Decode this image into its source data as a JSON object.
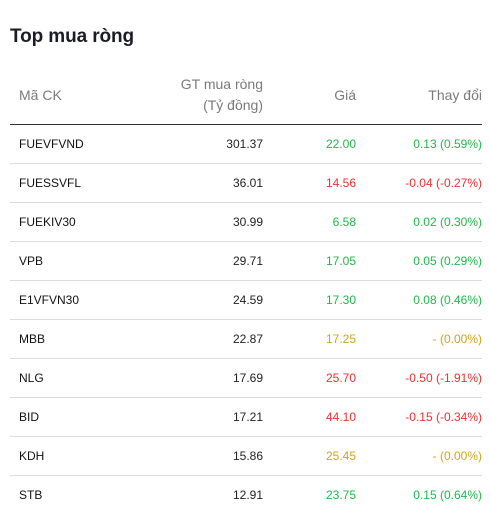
{
  "title": "Top mua ròng",
  "headers": {
    "code": "Mã CK",
    "value_line1": "GT mua ròng",
    "value_line2": "(Tỷ đồng)",
    "price": "Giá",
    "change": "Thay đổi"
  },
  "rows": [
    {
      "code": "FUEVFVND",
      "value": "301.37",
      "price": "22.00",
      "change": "0.13 (0.59%)",
      "trend": "up"
    },
    {
      "code": "FUESSVFL",
      "value": "36.01",
      "price": "14.56",
      "change": "-0.04 (-0.27%)",
      "trend": "down"
    },
    {
      "code": "FUEKIV30",
      "value": "30.99",
      "price": "6.58",
      "change": "0.02 (0.30%)",
      "trend": "up"
    },
    {
      "code": "VPB",
      "value": "29.71",
      "price": "17.05",
      "change": "0.05 (0.29%)",
      "trend": "up"
    },
    {
      "code": "E1VFVN30",
      "value": "24.59",
      "price": "17.30",
      "change": "0.08 (0.46%)",
      "trend": "up"
    },
    {
      "code": "MBB",
      "value": "22.87",
      "price": "17.25",
      "change": "- (0.00%)",
      "trend": "ref"
    },
    {
      "code": "NLG",
      "value": "17.69",
      "price": "25.70",
      "change": "-0.50 (-1.91%)",
      "trend": "down"
    },
    {
      "code": "BID",
      "value": "17.21",
      "price": "44.10",
      "change": "-0.15 (-0.34%)",
      "trend": "down"
    },
    {
      "code": "KDH",
      "value": "15.86",
      "price": "25.45",
      "change": "- (0.00%)",
      "trend": "ref"
    },
    {
      "code": "STB",
      "value": "12.91",
      "price": "23.75",
      "change": "0.15 (0.64%)",
      "trend": "up"
    }
  ],
  "colors": {
    "up": "#1fb84a",
    "down": "#ee2f2f",
    "ref": "#d4a414"
  }
}
